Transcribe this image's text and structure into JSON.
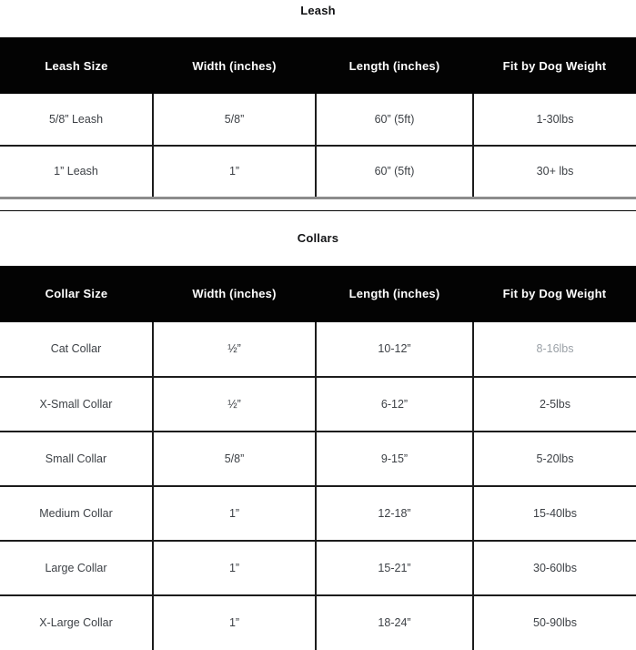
{
  "tables": [
    {
      "title": "Leash",
      "headers": [
        "Leash Size",
        "Width (inches)",
        "Length (inches)",
        "Fit by Dog Weight"
      ],
      "rows": [
        [
          "5/8” Leash",
          "5/8”",
          "60” (5ft)",
          "1-30lbs"
        ],
        [
          "1” Leash",
          "1”",
          "60” (5ft)",
          "30+ lbs"
        ]
      ],
      "muted_cells": []
    },
    {
      "title": "Collars",
      "headers": [
        "Collar Size",
        "Width (inches)",
        "Length (inches)",
        "Fit by Dog Weight"
      ],
      "rows": [
        [
          "Cat Collar",
          "½”",
          "10-12”",
          "8-16lbs"
        ],
        [
          "X-Small Collar",
          "½”",
          "6-12”",
          "2-5lbs"
        ],
        [
          "Small Collar",
          "5/8”",
          "9-15”",
          "5-20lbs"
        ],
        [
          "Medium Collar",
          "1”",
          "12-18”",
          "15-40lbs"
        ],
        [
          "Large Collar",
          "1”",
          "15-21”",
          "30-60lbs"
        ],
        [
          "X-Large Collar",
          "1”",
          "18-24”",
          "50-90lbs"
        ]
      ],
      "muted_cells": [
        [
          0,
          3
        ]
      ]
    }
  ],
  "colors": {
    "header_background": "#030303",
    "header_text": "#ffffff",
    "body_text": "#3d4146",
    "muted_text": "#9ba1a7",
    "grid_line": "#1c1c1c",
    "leash_bottom_border": "#8c8c8c"
  }
}
